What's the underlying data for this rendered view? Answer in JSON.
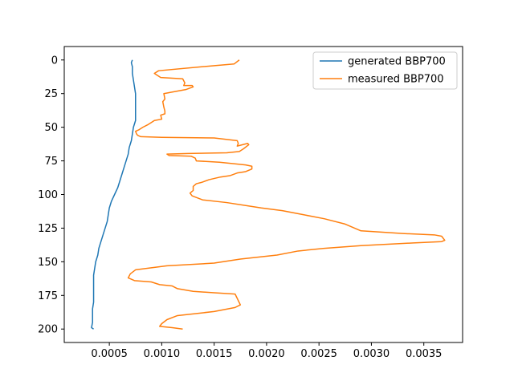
{
  "chart_data": {
    "type": "line",
    "title": "",
    "xlabel": "",
    "ylabel": "",
    "xlim": [
      7e-05,
      0.00387
    ],
    "ylim": [
      210,
      -10
    ],
    "y_inverted": true,
    "grid": false,
    "legend_position": "top-right",
    "x_ticks": [
      0.0005,
      0.001,
      0.0015,
      0.002,
      0.0025,
      0.003,
      0.0035
    ],
    "x_tick_labels": [
      "0.0005",
      "0.0010",
      "0.0015",
      "0.0020",
      "0.0025",
      "0.0030",
      "0.0035"
    ],
    "y_ticks": [
      0,
      25,
      50,
      75,
      100,
      125,
      150,
      175,
      200
    ],
    "y_tick_labels": [
      "0",
      "25",
      "50",
      "75",
      "100",
      "125",
      "150",
      "175",
      "200"
    ],
    "series": [
      {
        "name": "generated BBP700",
        "color": "#1f77b4",
        "points": [
          [
            0.00072,
            0
          ],
          [
            0.00071,
            2
          ],
          [
            0.00072,
            5
          ],
          [
            0.00072,
            10
          ],
          [
            0.00073,
            15
          ],
          [
            0.00074,
            20
          ],
          [
            0.00075,
            25
          ],
          [
            0.00075,
            30
          ],
          [
            0.00075,
            35
          ],
          [
            0.00075,
            40
          ],
          [
            0.00075,
            45
          ],
          [
            0.00073,
            50
          ],
          [
            0.00072,
            55
          ],
          [
            0.00071,
            60
          ],
          [
            0.00069,
            65
          ],
          [
            0.00068,
            70
          ],
          [
            0.00066,
            75
          ],
          [
            0.00064,
            80
          ],
          [
            0.00062,
            85
          ],
          [
            0.0006,
            90
          ],
          [
            0.00058,
            95
          ],
          [
            0.00055,
            100
          ],
          [
            0.00052,
            105
          ],
          [
            0.0005,
            110
          ],
          [
            0.00049,
            115
          ],
          [
            0.00048,
            120
          ],
          [
            0.00046,
            125
          ],
          [
            0.00044,
            130
          ],
          [
            0.00042,
            135
          ],
          [
            0.0004,
            140
          ],
          [
            0.00039,
            145
          ],
          [
            0.00037,
            150
          ],
          [
            0.00036,
            155
          ],
          [
            0.00035,
            160
          ],
          [
            0.00035,
            165
          ],
          [
            0.00035,
            170
          ],
          [
            0.00035,
            175
          ],
          [
            0.00035,
            180
          ],
          [
            0.00034,
            185
          ],
          [
            0.00034,
            190
          ],
          [
            0.00034,
            195
          ],
          [
            0.00033,
            199
          ],
          [
            0.00035,
            200
          ]
        ]
      },
      {
        "name": "measured BBP700",
        "color": "#ff7f0e",
        "points": [
          [
            0.00174,
            0
          ],
          [
            0.00169,
            3
          ],
          [
            0.00139,
            5
          ],
          [
            0.00097,
            8
          ],
          [
            0.00093,
            10
          ],
          [
            0.00095,
            11
          ],
          [
            0.00099,
            13
          ],
          [
            0.0012,
            14
          ],
          [
            0.00122,
            17
          ],
          [
            0.00121,
            19
          ],
          [
            0.00129,
            19
          ],
          [
            0.0013,
            20
          ],
          [
            0.00123,
            22
          ],
          [
            0.00109,
            24
          ],
          [
            0.00102,
            25
          ],
          [
            0.00103,
            29
          ],
          [
            0.00101,
            31
          ],
          [
            0.00102,
            35
          ],
          [
            0.00103,
            38
          ],
          [
            0.00103,
            40
          ],
          [
            0.00099,
            41
          ],
          [
            0.001,
            44
          ],
          [
            0.00093,
            45
          ],
          [
            0.00089,
            47
          ],
          [
            0.00087,
            48
          ],
          [
            0.00082,
            50
          ],
          [
            0.00078,
            52
          ],
          [
            0.00075,
            53
          ],
          [
            0.00076,
            55
          ],
          [
            0.00077,
            56
          ],
          [
            0.0008,
            57
          ],
          [
            0.001,
            57.5
          ],
          [
            0.0015,
            58
          ],
          [
            0.00172,
            60
          ],
          [
            0.00173,
            62
          ],
          [
            0.00172,
            64
          ],
          [
            0.00182,
            62
          ],
          [
            0.00183,
            63
          ],
          [
            0.00178,
            66
          ],
          [
            0.00174,
            68
          ],
          [
            0.00162,
            69
          ],
          [
            0.00125,
            69.5
          ],
          [
            0.00105,
            70
          ],
          [
            0.00107,
            71
          ],
          [
            0.00128,
            71.5
          ],
          [
            0.00132,
            73
          ],
          [
            0.00133,
            75
          ],
          [
            0.00155,
            76
          ],
          [
            0.0018,
            78
          ],
          [
            0.00186,
            79
          ],
          [
            0.00186,
            81
          ],
          [
            0.0018,
            83
          ],
          [
            0.00172,
            84
          ],
          [
            0.00165,
            86
          ],
          [
            0.00156,
            87
          ],
          [
            0.00145,
            89
          ],
          [
            0.00138,
            91
          ],
          [
            0.00133,
            92
          ],
          [
            0.0013,
            94
          ],
          [
            0.0013,
            97
          ],
          [
            0.00127,
            99
          ],
          [
            0.00129,
            101
          ],
          [
            0.00139,
            104
          ],
          [
            0.00162,
            106
          ],
          [
            0.00195,
            110
          ],
          [
            0.00215,
            112
          ],
          [
            0.00235,
            115
          ],
          [
            0.00255,
            118
          ],
          [
            0.00275,
            122
          ],
          [
            0.0029,
            127
          ],
          [
            0.0033,
            129
          ],
          [
            0.0036,
            130
          ],
          [
            0.00367,
            131
          ],
          [
            0.0037,
            134
          ],
          [
            0.00367,
            135
          ],
          [
            0.0034,
            136
          ],
          [
            0.0029,
            138
          ],
          [
            0.00255,
            140
          ],
          [
            0.0023,
            142
          ],
          [
            0.0021,
            145
          ],
          [
            0.00175,
            148
          ],
          [
            0.0015,
            151
          ],
          [
            0.00105,
            153
          ],
          [
            0.00075,
            156
          ],
          [
            0.0007,
            159
          ],
          [
            0.00068,
            162
          ],
          [
            0.00074,
            164
          ],
          [
            0.0009,
            165
          ],
          [
            0.00098,
            167
          ],
          [
            0.0011,
            168
          ],
          [
            0.00115,
            170
          ],
          [
            0.0013,
            172
          ],
          [
            0.0015,
            173
          ],
          [
            0.0017,
            174
          ],
          [
            0.00175,
            182
          ],
          [
            0.0017,
            184
          ],
          [
            0.0015,
            187
          ],
          [
            0.00115,
            190
          ],
          [
            0.00105,
            193
          ],
          [
            0.001,
            196
          ],
          [
            0.00098,
            198
          ],
          [
            0.0011,
            199
          ],
          [
            0.0012,
            200
          ]
        ]
      }
    ]
  }
}
